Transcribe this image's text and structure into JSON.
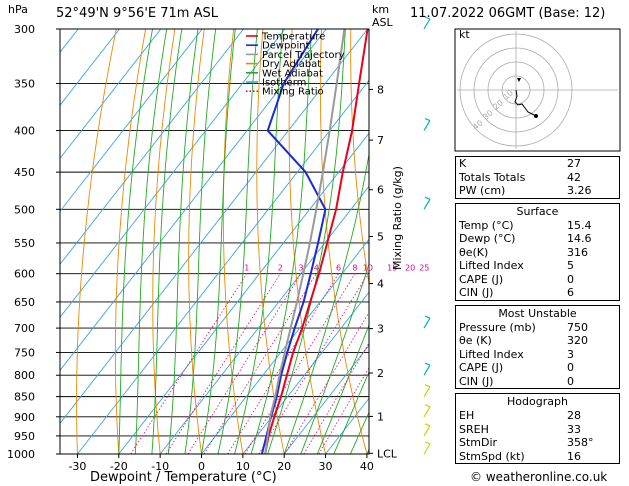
{
  "header": {
    "location": "52°49'N  9°56'E  71m  ASL",
    "datetime": "11.07.2022  06GMT  (Base: 12)",
    "pressure_unit": "hPa",
    "height_unit_km": "km",
    "height_unit_asl": "ASL"
  },
  "chart_data": {
    "type": "line",
    "xlabel": "Dewpoint / Temperature (°C)",
    "mr_axis_label": "Mixing Ratio (g/kg)",
    "x_ticks": [
      -30,
      -20,
      -10,
      0,
      10,
      20,
      30,
      40
    ],
    "x_range": [
      -35,
      40
    ],
    "pressure_levels": [
      300,
      350,
      400,
      450,
      500,
      550,
      600,
      650,
      700,
      750,
      800,
      850,
      900,
      950,
      1000
    ],
    "pressure_range": [
      300,
      1000
    ],
    "km_ticks": [
      {
        "label": "8",
        "p": 356
      },
      {
        "label": "7",
        "p": 411
      },
      {
        "label": "6",
        "p": 473
      },
      {
        "label": "5",
        "p": 540
      },
      {
        "label": "4",
        "p": 617
      },
      {
        "label": "3",
        "p": 701
      },
      {
        "label": "2",
        "p": 795
      },
      {
        "label": "1",
        "p": 899
      },
      {
        "label": "LCL",
        "p": 998
      }
    ],
    "mixing_ratio_labels": [
      "1",
      "2",
      "3",
      "4",
      "6",
      "8",
      "10",
      "15",
      "20",
      "25"
    ],
    "mixing_ratio_values": [
      1,
      2,
      3,
      4,
      6,
      8,
      10,
      15,
      20,
      25
    ],
    "legend": [
      "Temperature",
      "Dewpoint",
      "Parcel Trajectory",
      "Dry Adiabat",
      "Wet Adiabat",
      "Isotherm",
      "Mixing Ratio"
    ],
    "series": [
      {
        "name": "Temperature",
        "color": "#e8001c",
        "points": [
          [
            1000,
            15.4
          ],
          [
            950,
            12.8
          ],
          [
            900,
            10.6
          ],
          [
            850,
            8.4
          ],
          [
            800,
            5.8
          ],
          [
            750,
            3.0
          ],
          [
            700,
            0.6
          ],
          [
            650,
            -2.4
          ],
          [
            600,
            -5.6
          ],
          [
            550,
            -9.4
          ],
          [
            500,
            -13.6
          ],
          [
            450,
            -19.0
          ],
          [
            400,
            -24.6
          ],
          [
            350,
            -31.8
          ],
          [
            300,
            -40.0
          ]
        ]
      },
      {
        "name": "Dewpoint",
        "color": "#1a2bd6",
        "points": [
          [
            1000,
            14.6
          ],
          [
            950,
            12.3
          ],
          [
            900,
            9.8
          ],
          [
            850,
            7.4
          ],
          [
            800,
            4.4
          ],
          [
            750,
            1.6
          ],
          [
            700,
            -1.2
          ],
          [
            650,
            -4.0
          ],
          [
            600,
            -7.6
          ],
          [
            550,
            -11.6
          ],
          [
            500,
            -16.2
          ],
          [
            450,
            -28.0
          ],
          [
            400,
            -45.0
          ],
          [
            350,
            -50.0
          ],
          [
            300,
            -52.0
          ]
        ]
      },
      {
        "name": "Parcel Trajectory",
        "color": "#999999",
        "points": [
          [
            1000,
            15.4
          ],
          [
            950,
            12.6
          ],
          [
            900,
            9.6
          ],
          [
            850,
            7.0
          ],
          [
            800,
            4.0
          ],
          [
            750,
            1.0
          ],
          [
            700,
            -2.2
          ],
          [
            650,
            -5.6
          ],
          [
            600,
            -9.4
          ],
          [
            550,
            -13.6
          ],
          [
            500,
            -18.4
          ],
          [
            450,
            -23.8
          ],
          [
            400,
            -30.0
          ],
          [
            350,
            -37.2
          ],
          [
            300,
            -45.6
          ]
        ]
      }
    ]
  },
  "hodograph": {
    "label": "kt",
    "ring_labels": [
      "10",
      "20",
      "30",
      "40"
    ]
  },
  "indices": {
    "rows": [
      {
        "k": "K",
        "v": "27"
      },
      {
        "k": "Totals Totals",
        "v": "42"
      },
      {
        "k": "PW (cm)",
        "v": "3.26"
      }
    ]
  },
  "surface": {
    "title": "Surface",
    "rows": [
      {
        "k": "Temp (°C)",
        "v": "15.4"
      },
      {
        "k": "Dewp (°C)",
        "v": "14.6"
      },
      {
        "k": "θe(K)",
        "v": "316"
      },
      {
        "k": "Lifted Index",
        "v": "5"
      },
      {
        "k": "CAPE (J)",
        "v": "0"
      },
      {
        "k": "CIN (J)",
        "v": "6"
      }
    ]
  },
  "most_unstable": {
    "title": "Most Unstable",
    "rows": [
      {
        "k": "Pressure (mb)",
        "v": "750"
      },
      {
        "k": "θe (K)",
        "v": "320"
      },
      {
        "k": "Lifted Index",
        "v": "3"
      },
      {
        "k": "CAPE (J)",
        "v": "0"
      },
      {
        "k": "CIN (J)",
        "v": "0"
      }
    ]
  },
  "hodograph_table": {
    "title": "Hodograph",
    "rows": [
      {
        "k": "EH",
        "v": "28"
      },
      {
        "k": "SREH",
        "v": "33"
      },
      {
        "k": "StmDir",
        "v": "358°"
      },
      {
        "k": "StmSpd (kt)",
        "v": "16"
      }
    ]
  },
  "credit": "© weatheronline.co.uk"
}
